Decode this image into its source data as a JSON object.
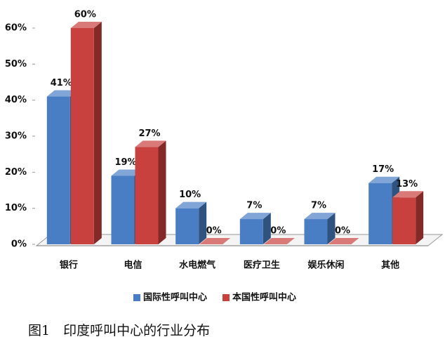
{
  "chart_data": {
    "type": "bar3d",
    "categories": [
      "银行",
      "电信",
      "水电燃气",
      "医疗卫生",
      "娱乐休闲",
      "其他"
    ],
    "series": [
      {
        "name": "国际性呼叫中心",
        "color": "#4a7ec4",
        "values": [
          41,
          19,
          10,
          7,
          7,
          17
        ],
        "value_labels": [
          "41%",
          "19%",
          "10%",
          "7%",
          "7%",
          "17%"
        ]
      },
      {
        "name": "本国性呼叫中心",
        "color": "#c9413e",
        "values": [
          60,
          27,
          0,
          0,
          0,
          13
        ],
        "value_labels": [
          "60%",
          "27%",
          "0%",
          "0%",
          "0%",
          "13%"
        ]
      }
    ],
    "ylim": [
      0,
      60
    ],
    "yticks": [
      {
        "value": 0,
        "label": "0%"
      },
      {
        "value": 10,
        "label": "10%"
      },
      {
        "value": 20,
        "label": "20%"
      },
      {
        "value": 30,
        "label": "30%"
      },
      {
        "value": 40,
        "label": "40%"
      },
      {
        "value": 50,
        "label": "50%"
      },
      {
        "value": 60,
        "label": "60%"
      }
    ],
    "legend": "bottom",
    "caption": "图1　印度呼叫中心的行业分布"
  }
}
